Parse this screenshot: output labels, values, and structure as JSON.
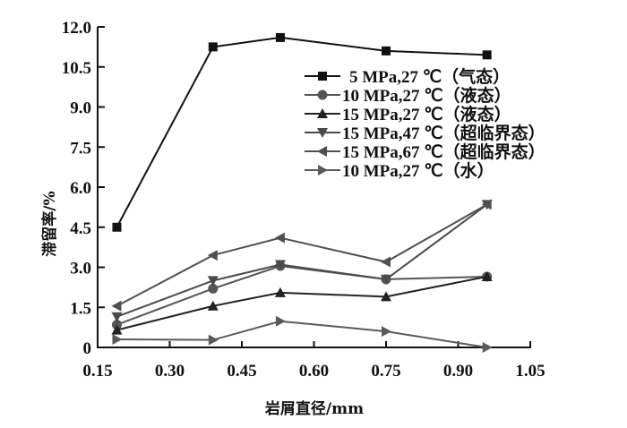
{
  "chart_data": {
    "type": "line",
    "title": "",
    "xlabel": "岩屑直径/mm",
    "ylabel": "滞留率/%",
    "xlim": [
      0.15,
      1.05
    ],
    "ylim": [
      0,
      12.0
    ],
    "xticks": [
      "0.15",
      "0.30",
      "0.45",
      "0.60",
      "0.75",
      "0.90",
      "1.05"
    ],
    "xtick_values": [
      0.15,
      0.3,
      0.45,
      0.6,
      0.75,
      0.9,
      1.05
    ],
    "yticks": [
      "0",
      "1.5",
      "3.0",
      "4.5",
      "6.0",
      "7.5",
      "9.0",
      "10.5",
      "12.0"
    ],
    "ytick_values": [
      0,
      1.5,
      3.0,
      4.5,
      6.0,
      7.5,
      9.0,
      10.5,
      12.0
    ],
    "grid": false,
    "legend_position": "top-right",
    "x": [
      0.19,
      0.39,
      0.53,
      0.75,
      0.96
    ],
    "series": [
      {
        "name": "5 MPa,27 ℃（气态）",
        "marker": "square",
        "color": "#111111",
        "values": [
          4.5,
          11.25,
          11.6,
          11.1,
          10.95
        ]
      },
      {
        "name": "10 MPa,27 ℃（液态）",
        "marker": "circle",
        "color": "#555555",
        "values": [
          0.85,
          2.2,
          3.05,
          2.55,
          2.65
        ]
      },
      {
        "name": "15 MPa,27 ℃（液态）",
        "marker": "triangle-up",
        "color": "#222222",
        "values": [
          0.65,
          1.55,
          2.05,
          1.9,
          2.65
        ]
      },
      {
        "name": "15 MPa,47 ℃（超临界态）",
        "marker": "triangle-down",
        "color": "#4a4a4a",
        "values": [
          1.15,
          2.5,
          3.1,
          2.55,
          5.35
        ]
      },
      {
        "name": "15 MPa,67 ℃（超临界态）",
        "marker": "triangle-left",
        "color": "#505050",
        "values": [
          1.55,
          3.45,
          4.1,
          3.2,
          5.35
        ]
      },
      {
        "name": "10 MPa,27 ℃（水）",
        "marker": "triangle-right",
        "color": "#5a5a5a",
        "values": [
          0.3,
          0.28,
          0.98,
          0.6,
          0.0
        ]
      }
    ]
  }
}
